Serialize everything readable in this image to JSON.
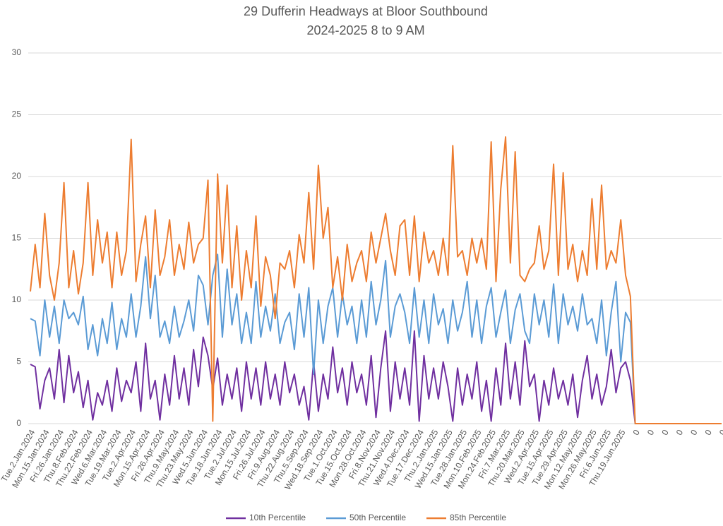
{
  "chart_data": {
    "type": "line",
    "title": "29 Dufferin Headways at Bloor Southbound",
    "subtitle": "2024-2025 8 to 9 AM",
    "ylim": [
      0,
      30
    ],
    "yticks": [
      0,
      5,
      10,
      15,
      20,
      25,
      30
    ],
    "grid": true,
    "legend": "bottom",
    "categories": [
      "Tue.2.Jan.2024",
      null,
      null,
      "Mon.15.Jan.2024",
      null,
      null,
      "Fri.26.Jan.2024",
      null,
      null,
      "Thu.8.Feb.2024",
      null,
      null,
      "Thu.22.Feb.2024",
      null,
      null,
      "Wed.6.Mar.2024",
      null,
      null,
      "Tue.19.Mar.2024",
      null,
      null,
      "Tue.2.Apr.2024",
      null,
      null,
      "Mon.15.Apr.2024",
      null,
      null,
      "Fri.26.Apr.2024",
      null,
      null,
      "Thu.9.May.2024",
      null,
      null,
      "Thu.23.May.2024",
      null,
      null,
      "Wed.5.Jun.2024",
      null,
      null,
      "Tue.18.Jun.2024",
      null,
      null,
      "Tue.2.Jul.2024",
      null,
      null,
      "Mon.15.Jul.2024",
      null,
      null,
      "Fri.26.Jul.2024",
      null,
      null,
      "Fri.9.Aug.2024",
      null,
      null,
      "Thu.22.Aug.2024",
      null,
      null,
      "Thu.5.Sep.2024",
      null,
      null,
      "Wed.18.Sep.2024",
      null,
      null,
      "Tue.1.Oct.2024",
      null,
      null,
      "Tue.15.Oct.2024",
      null,
      null,
      "Mon.28.Oct.2024",
      null,
      null,
      "Fri.8.Nov.2024",
      null,
      null,
      "Thu.21.Nov.2024",
      null,
      null,
      "Wed.4.Dec.2024",
      null,
      null,
      "Tue.17.Dec.2024",
      null,
      null,
      "Thu.2.Jan.2025",
      null,
      null,
      "Wed.15.Jan.2025",
      null,
      null,
      "Tue.28.Jan.2025",
      null,
      null,
      "Mon.10.Feb.2025",
      null,
      null,
      "Mon.24.Feb.2025",
      null,
      null,
      "Fri.7.Mar.2025",
      null,
      null,
      "Thu.20.Mar.2025",
      null,
      null,
      "Wed.2.Apr.2025",
      null,
      null,
      "Tue.15.Apr.2025",
      null,
      null,
      "Tue.29.Apr.2025",
      null,
      null,
      "Mon.12.May.2025",
      null,
      null,
      "Mon.26.May.2025",
      null,
      null,
      "Fri.6.Jun.2025",
      null,
      null,
      "Thu.19.Jun.2025",
      null,
      null,
      "0",
      null,
      null,
      "0",
      null,
      null,
      "0",
      null,
      null,
      "0",
      null,
      null,
      "0",
      null,
      null,
      "0",
      null,
      null,
      "0"
    ],
    "series": [
      {
        "name": "10th Percentile",
        "color": "#7030a0",
        "values": [
          4.8,
          4.6,
          1.2,
          3.5,
          4.5,
          2,
          6,
          1.7,
          5.5,
          2.5,
          4.2,
          1.3,
          3.5,
          0.3,
          2.5,
          1.5,
          3.5,
          1,
          4.5,
          1.8,
          3.5,
          2.5,
          5,
          1,
          6.5,
          2,
          3.5,
          0.3,
          4,
          1.5,
          5.5,
          2,
          4.5,
          1.5,
          6,
          3,
          7,
          5.5,
          2.8,
          5.3,
          1.5,
          4,
          2,
          4.5,
          1,
          5,
          2,
          4.5,
          1.5,
          5,
          2,
          4,
          1.5,
          5,
          2.5,
          4,
          1.5,
          3,
          0.3,
          5,
          1,
          4,
          2,
          6.2,
          2.5,
          4.5,
          1.5,
          5,
          2.5,
          4,
          1.5,
          5.5,
          0.5,
          4.5,
          7.5,
          1,
          5,
          2,
          4.5,
          1.5,
          7.5,
          0.2,
          5.5,
          2,
          4.5,
          2,
          5,
          3,
          0.2,
          4.5,
          1.5,
          4,
          2,
          5,
          1,
          3.5,
          0.2,
          4.5,
          1.5,
          6.5,
          2,
          5,
          1.5,
          6.7,
          3,
          4,
          0.2,
          3.5,
          1.5,
          4.5,
          2,
          3.5,
          1.5,
          4,
          0.5,
          3.5,
          5.5,
          2,
          4,
          1.5,
          3,
          6,
          2.5,
          4.5,
          5,
          3.5,
          0,
          0,
          0,
          0,
          0,
          0,
          0,
          0,
          0,
          0,
          0,
          0,
          0,
          0,
          0,
          0,
          0,
          0,
          0
        ]
      },
      {
        "name": "50th Percentile",
        "color": "#5b9bd5",
        "values": [
          8.5,
          8.3,
          5.5,
          10,
          7,
          9.5,
          6.5,
          10,
          8.5,
          9,
          8,
          10.3,
          6,
          8,
          5.5,
          8.5,
          6.5,
          9.8,
          6,
          8.5,
          7,
          10.5,
          7,
          9.5,
          13.5,
          8.5,
          12,
          7,
          8.3,
          6.5,
          9.5,
          7,
          8.3,
          10,
          7.5,
          12,
          11.2,
          8,
          12,
          13.7,
          7,
          12.5,
          8,
          10.5,
          6.5,
          9,
          6.5,
          11.5,
          7,
          9.5,
          7.5,
          10.5,
          6.5,
          8.2,
          9,
          6,
          10.5,
          7,
          11,
          4,
          10,
          6.5,
          9.5,
          11,
          7,
          10.5,
          8,
          9.5,
          6.5,
          10,
          7,
          11.5,
          8,
          10,
          13.2,
          7,
          9.5,
          10.5,
          9,
          6.5,
          11,
          7,
          10,
          6.5,
          10.5,
          8,
          9.3,
          6.5,
          10,
          7.5,
          9,
          11.5,
          7,
          10,
          6.5,
          9.5,
          11,
          7,
          9,
          10.8,
          6.5,
          9.2,
          10.5,
          7.5,
          6.5,
          10.5,
          8,
          10,
          7,
          11.3,
          6.5,
          10.5,
          8,
          9.5,
          7.5,
          10.5,
          8,
          8.5,
          6.5,
          10,
          5.5,
          9,
          11.5,
          5,
          9,
          8.2,
          0,
          0,
          0,
          0,
          0,
          0,
          0,
          0,
          0,
          0,
          0,
          0,
          0,
          0,
          0,
          0,
          0,
          0,
          0
        ]
      },
      {
        "name": "85th Percentile",
        "color": "#ed7d31",
        "values": [
          10.7,
          14.5,
          11,
          17,
          12,
          10,
          13,
          19.5,
          11,
          14,
          10.5,
          13,
          19.5,
          12,
          16.5,
          13,
          15.5,
          11,
          15.5,
          12,
          14,
          23,
          11.5,
          14.5,
          16.8,
          11,
          17.3,
          12,
          13.5,
          16.5,
          12,
          14.5,
          12.5,
          16.3,
          13,
          14.5,
          15,
          19.7,
          0.2,
          20.2,
          13,
          19.3,
          11,
          16,
          10,
          14,
          11,
          16.8,
          9.5,
          13.5,
          12,
          8.5,
          13,
          12.5,
          14,
          11,
          15.3,
          13,
          18.7,
          12.5,
          20.9,
          15,
          17.5,
          11,
          13.5,
          10,
          14.5,
          11.5,
          13,
          14,
          11.5,
          15.5,
          13,
          15,
          17,
          14,
          12,
          16,
          16.5,
          12,
          16.8,
          11.5,
          15.5,
          13,
          14,
          12,
          15,
          12,
          22.5,
          13.5,
          14,
          12,
          15,
          13,
          15,
          12.5,
          22.8,
          11.5,
          19,
          23.2,
          13,
          22,
          12,
          11.5,
          12.5,
          13,
          16,
          12.5,
          14,
          21,
          12,
          20.3,
          12.5,
          14.5,
          11.5,
          14,
          12,
          18.2,
          12.5,
          19.3,
          12.5,
          14,
          13,
          16.5,
          12,
          10.3,
          0,
          0,
          0,
          0,
          0,
          0,
          0,
          0,
          0,
          0,
          0,
          0,
          0,
          0,
          0,
          0,
          0,
          0,
          0
        ]
      }
    ]
  }
}
